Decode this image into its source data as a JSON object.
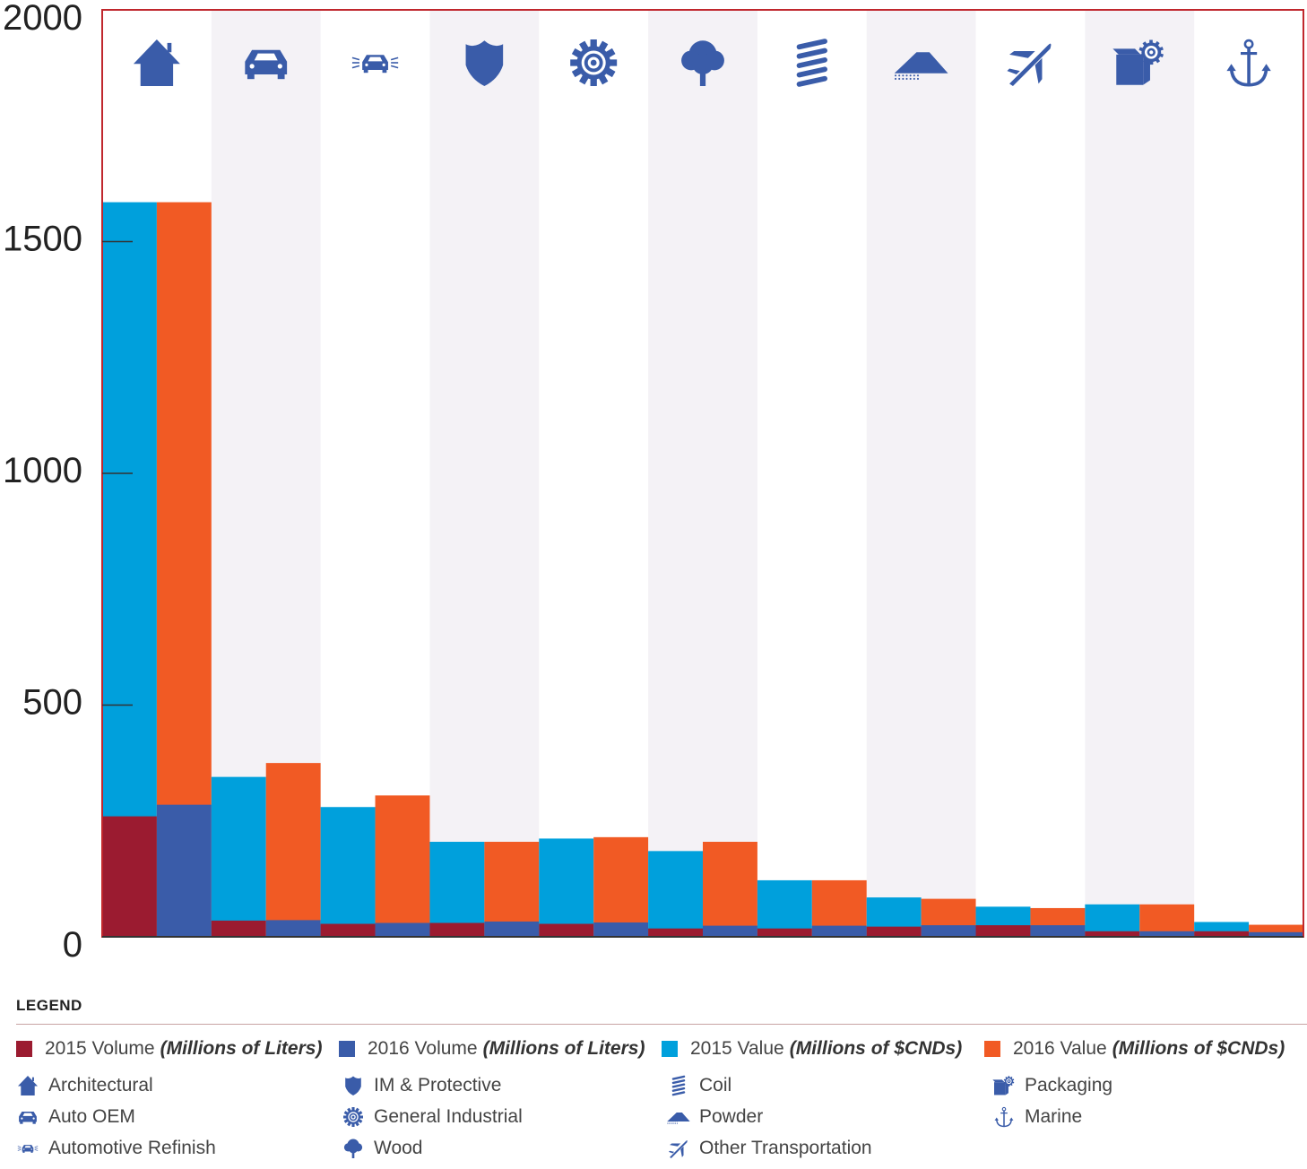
{
  "chart_data": {
    "type": "bar",
    "ylim": [
      0,
      2000
    ],
    "yticks": [
      0,
      500,
      1000,
      1500,
      2000
    ],
    "grid": false,
    "legend_placement": "bottom",
    "legend_title": "LEGEND",
    "categories": [
      "Architectural",
      "Auto OEM",
      "Automotive Refinish",
      "IM & Protective",
      "General Industrial",
      "Wood",
      "Coil",
      "Powder",
      "Other Transportation",
      "Packaging",
      "Marine"
    ],
    "category_icons": [
      "house-icon",
      "car-icon",
      "refinish-car-icon",
      "shield-icon",
      "gear-icon",
      "tree-icon",
      "coil-icon",
      "powder-icon",
      "airplane-icon",
      "packaging-icon",
      "anchor-icon"
    ],
    "series": [
      {
        "name": "2015 Volume",
        "unit": "(Millions of Liters)",
        "color": "#9b1b30",
        "values": [
          260,
          35,
          28,
          30,
          28,
          18,
          18,
          22,
          25,
          12,
          12
        ]
      },
      {
        "name": "2016 Volume",
        "unit": "(Millions of Liters)",
        "color": "#3a5ca9",
        "values": [
          285,
          36,
          30,
          33,
          31,
          24,
          24,
          25,
          25,
          12,
          10
        ]
      },
      {
        "name": "2015 Value",
        "unit": "(Millions of $CNDs)",
        "color": "#00a0dc",
        "values": [
          1585,
          345,
          280,
          205,
          212,
          185,
          122,
          85,
          65,
          70,
          32
        ]
      },
      {
        "name": "2016 Value",
        "unit": "(Millions of $CNDs)",
        "color": "#f15a24",
        "values": [
          1585,
          375,
          305,
          205,
          215,
          205,
          122,
          82,
          62,
          70,
          26
        ]
      }
    ]
  },
  "colors": {
    "frame": "#c0272d",
    "stripe": "#f4f2f6",
    "icon": "#3a5ca9"
  }
}
